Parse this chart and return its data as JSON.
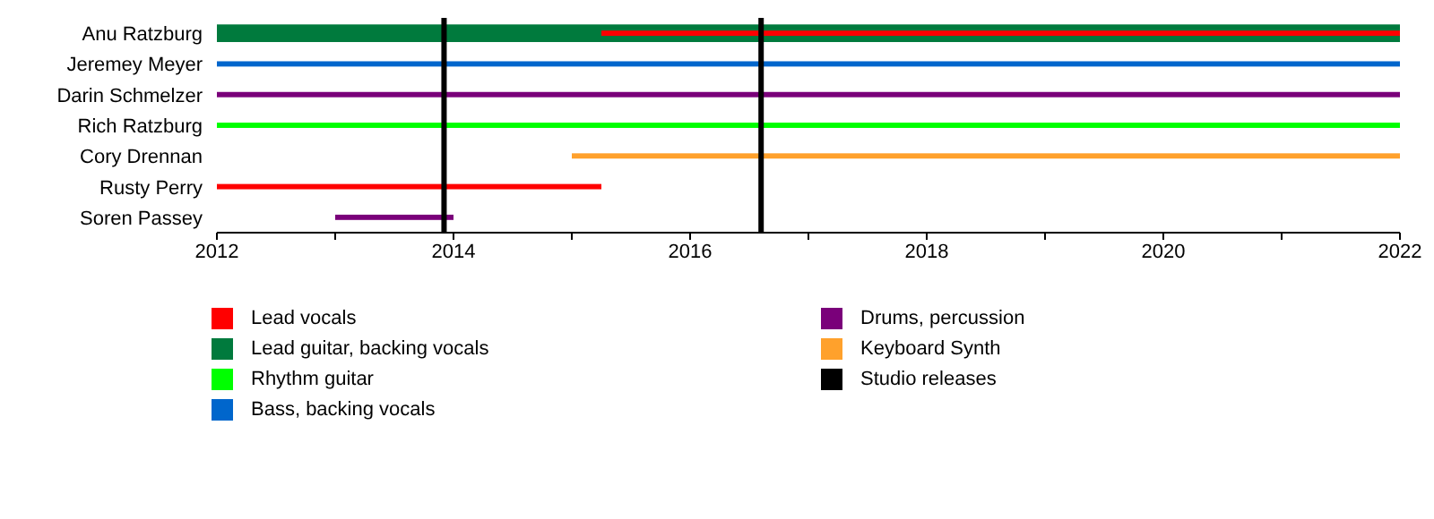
{
  "chart_data": {
    "type": "bar",
    "orientation": "horizontal",
    "categories": [
      "Anu Ratzburg",
      "Jeremey Meyer",
      "Darin Schmelzer",
      "Rich Ratzburg",
      "Cory Drennan",
      "Rusty Perry",
      "Soren Passey"
    ],
    "series": [
      {
        "name": "Lead vocals",
        "color": "#ff0000",
        "base": [
          2015.25,
          null,
          null,
          null,
          null,
          2012,
          null
        ],
        "values": [
          6.75,
          null,
          null,
          null,
          null,
          3.25,
          null
        ]
      },
      {
        "name": "Lead guitar, backing vocals",
        "color": "#007a3d",
        "base": [
          2012,
          null,
          null,
          null,
          null,
          null,
          null
        ],
        "values": [
          10,
          null,
          null,
          null,
          null,
          null,
          null
        ]
      },
      {
        "name": "Rhythm guitar",
        "color": "#00ff00",
        "base": [
          null,
          null,
          null,
          2012,
          null,
          null,
          null
        ],
        "values": [
          null,
          null,
          null,
          10,
          null,
          null,
          null
        ]
      },
      {
        "name": "Bass, backing vocals",
        "color": "#0066cc",
        "base": [
          null,
          2012,
          null,
          null,
          null,
          null,
          null
        ],
        "values": [
          null,
          10,
          null,
          null,
          null,
          null,
          null
        ]
      },
      {
        "name": "Drums, percussion",
        "color": "#7a007a",
        "base": [
          null,
          null,
          2012,
          null,
          null,
          null,
          2013
        ],
        "values": [
          null,
          null,
          10,
          null,
          null,
          null,
          1
        ]
      },
      {
        "name": "Keyboard Synth",
        "color": "#ffa12c",
        "base": [
          null,
          null,
          null,
          null,
          2015,
          null,
          null
        ],
        "values": [
          null,
          null,
          null,
          null,
          7,
          null,
          null
        ]
      }
    ],
    "xlim": [
      2012,
      2022
    ],
    "xticks": [
      2012,
      {
        "value": 2013,
        "label": null
      },
      2014,
      {
        "value": 2015,
        "label": null
      },
      2016,
      {
        "value": 2017,
        "label": null
      },
      2018,
      {
        "value": 2019,
        "label": null
      },
      2020,
      {
        "value": 2021,
        "label": null
      },
      2022
    ],
    "ref_lines": [
      {
        "axis": "x",
        "value": 2013.92,
        "label": "Studio releases",
        "color": "#000000"
      },
      {
        "axis": "x",
        "value": 2016.6,
        "label": null,
        "color": "#000000"
      }
    ],
    "legend": "bottom"
  }
}
